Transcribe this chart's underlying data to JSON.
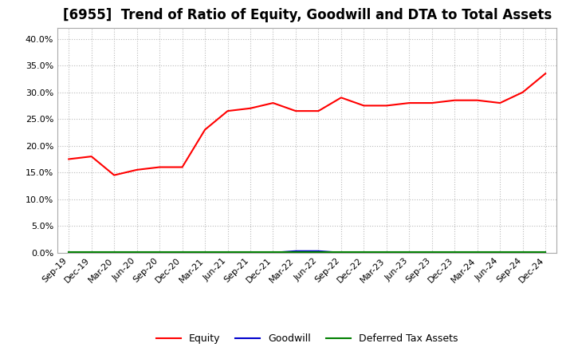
{
  "title": "[6955]  Trend of Ratio of Equity, Goodwill and DTA to Total Assets",
  "x_labels": [
    "Sep-19",
    "Dec-19",
    "Mar-20",
    "Jun-20",
    "Sep-20",
    "Dec-20",
    "Mar-21",
    "Jun-21",
    "Sep-21",
    "Dec-21",
    "Mar-22",
    "Jun-22",
    "Sep-22",
    "Dec-22",
    "Mar-23",
    "Jun-23",
    "Sep-23",
    "Dec-23",
    "Mar-24",
    "Jun-24",
    "Sep-24",
    "Dec-24"
  ],
  "equity": [
    17.5,
    18.0,
    14.5,
    15.5,
    16.0,
    16.0,
    23.0,
    26.5,
    27.0,
    28.0,
    26.5,
    26.5,
    29.0,
    27.5,
    27.5,
    28.0,
    28.0,
    28.5,
    28.5,
    28.0,
    30.0,
    33.5
  ],
  "goodwill": [
    0.0,
    0.0,
    0.0,
    0.0,
    0.0,
    0.0,
    0.0,
    0.0,
    0.0,
    0.0,
    0.3,
    0.3,
    0.0,
    0.0,
    0.0,
    0.0,
    0.0,
    0.0,
    0.0,
    0.0,
    0.0,
    0.0
  ],
  "dta": [
    0.1,
    0.1,
    0.1,
    0.1,
    0.1,
    0.1,
    0.1,
    0.1,
    0.1,
    0.1,
    0.1,
    0.1,
    0.1,
    0.1,
    0.1,
    0.1,
    0.1,
    0.1,
    0.1,
    0.1,
    0.1,
    0.1
  ],
  "equity_color": "#ff0000",
  "goodwill_color": "#0000cd",
  "dta_color": "#008000",
  "ylim": [
    0,
    42
  ],
  "yticks": [
    0,
    5,
    10,
    15,
    20,
    25,
    30,
    35,
    40
  ],
  "background_color": "#ffffff",
  "plot_bg_color": "#ffffff",
  "grid_color": "#bbbbbb",
  "title_fontsize": 12,
  "tick_fontsize": 8,
  "legend_labels": [
    "Equity",
    "Goodwill",
    "Deferred Tax Assets"
  ]
}
